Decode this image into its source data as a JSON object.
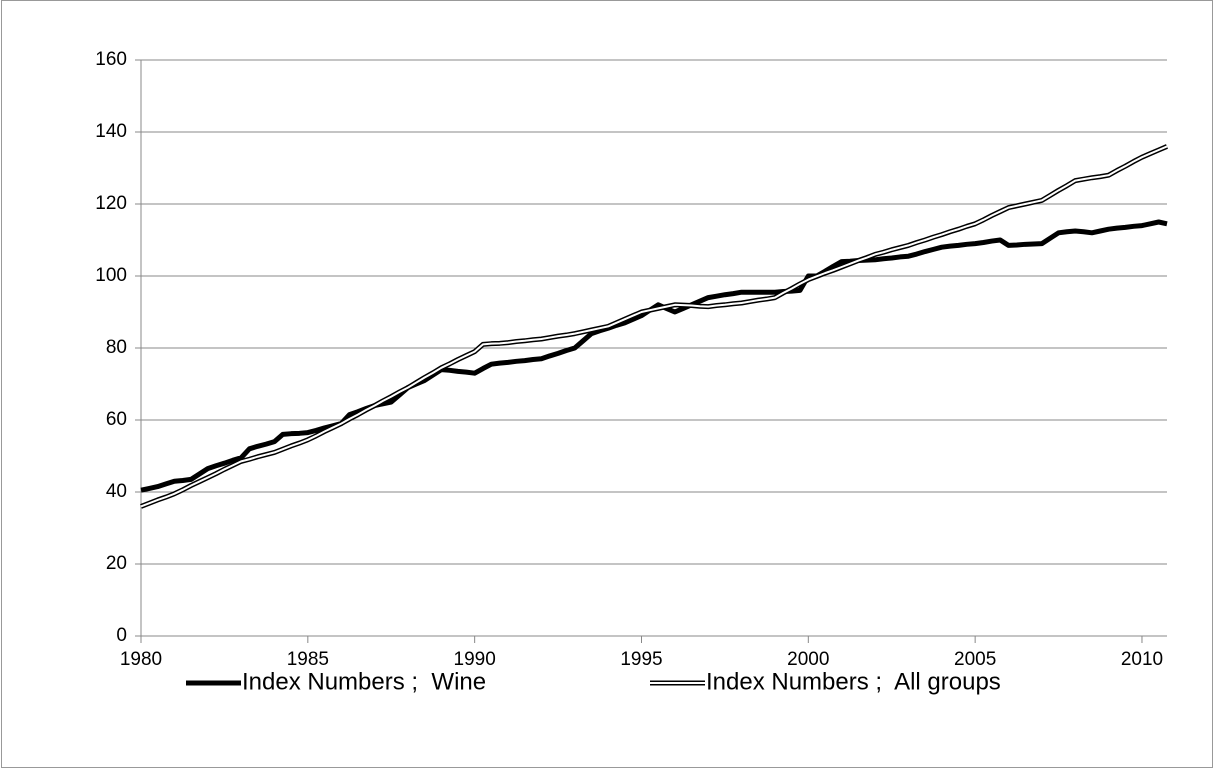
{
  "chart_data": {
    "type": "line",
    "x": [
      1980,
      1980.25,
      1980.5,
      1980.75,
      1981,
      1981.25,
      1981.5,
      1981.75,
      1982,
      1982.25,
      1982.5,
      1982.75,
      1983,
      1983.25,
      1983.5,
      1983.75,
      1984,
      1984.25,
      1984.5,
      1984.75,
      1985,
      1985.25,
      1985.5,
      1985.75,
      1986,
      1986.25,
      1986.5,
      1986.75,
      1987,
      1987.25,
      1987.5,
      1987.75,
      1988,
      1988.25,
      1988.5,
      1988.75,
      1989,
      1989.25,
      1989.5,
      1989.75,
      1990,
      1990.25,
      1990.5,
      1990.75,
      1991,
      1991.25,
      1991.5,
      1991.75,
      1992,
      1992.25,
      1992.5,
      1992.75,
      1993,
      1993.25,
      1993.5,
      1993.75,
      1994,
      1994.25,
      1994.5,
      1994.75,
      1995,
      1995.25,
      1995.5,
      1995.75,
      1996,
      1996.25,
      1996.5,
      1996.75,
      1997,
      1997.25,
      1997.5,
      1997.75,
      1998,
      1998.25,
      1998.5,
      1998.75,
      1999,
      1999.25,
      1999.5,
      1999.75,
      2000,
      2000.25,
      2000.5,
      2000.75,
      2001,
      2001.25,
      2001.5,
      2001.75,
      2002,
      2002.25,
      2002.5,
      2002.75,
      2003,
      2003.25,
      2003.5,
      2003.75,
      2004,
      2004.25,
      2004.5,
      2004.75,
      2005,
      2005.25,
      2005.5,
      2005.75,
      2006,
      2006.25,
      2006.5,
      2006.75,
      2007,
      2007.25,
      2007.5,
      2007.75,
      2008,
      2008.25,
      2008.5,
      2008.75,
      2009,
      2009.25,
      2009.5,
      2009.75,
      2010,
      2010.25,
      2010.5,
      2010.75
    ],
    "series": [
      {
        "name": "Index Numbers ;  Wine",
        "color": "#000000",
        "line_style": "solid",
        "values": [
          40.5,
          41,
          41.5,
          42.25,
          43,
          43.2,
          43.5,
          45,
          46.5,
          47.3,
          48,
          48.8,
          49.5,
          52,
          52.7,
          53.3,
          54,
          56,
          56.2,
          56.3,
          56.5,
          57.1,
          57.8,
          58.4,
          59,
          61.5,
          62.3,
          63.2,
          64,
          64.5,
          65,
          67,
          69,
          70,
          71,
          72.5,
          74,
          73.8,
          73.5,
          73.3,
          73,
          74.3,
          75.5,
          75.8,
          76,
          76.3,
          76.5,
          76.8,
          77,
          77.8,
          78.5,
          79.3,
          80,
          82,
          84,
          84.8,
          85.5,
          86.3,
          87,
          88,
          89,
          90.5,
          92,
          91,
          90,
          91,
          92,
          93,
          94,
          94.4,
          94.8,
          95.1,
          95.5,
          95.5,
          95.5,
          95.5,
          95.5,
          95.7,
          95.8,
          96,
          100,
          100,
          101.3,
          102.7,
          104,
          104.1,
          104.3,
          104.4,
          104.5,
          104.8,
          105,
          105.3,
          105.5,
          106.1,
          106.8,
          107.4,
          108,
          108.3,
          108.5,
          108.8,
          109,
          109.3,
          109.7,
          110,
          108.5,
          108.6,
          108.8,
          108.9,
          109,
          110.5,
          112,
          112.3,
          112.5,
          112.3,
          112,
          112.5,
          113,
          113.3,
          113.5,
          113.8,
          114,
          114.5,
          115,
          114.5
        ]
      },
      {
        "name": "Index Numbers ;  All groups",
        "color": "#000000",
        "line_style": "double",
        "values": [
          36,
          36.9,
          37.8,
          38.6,
          39.5,
          40.6,
          41.8,
          42.9,
          44,
          45.1,
          46.3,
          47.4,
          48.5,
          49.1,
          49.8,
          50.4,
          51,
          51.9,
          52.8,
          53.6,
          54.5,
          55.6,
          56.8,
          57.9,
          59,
          60.3,
          61.5,
          62.8,
          64,
          65.3,
          66.5,
          67.8,
          69,
          70.4,
          71.8,
          73.1,
          74.5,
          75.6,
          76.8,
          77.9,
          79,
          81,
          81.2,
          81.3,
          81.5,
          81.8,
          82,
          82.3,
          82.5,
          82.9,
          83.3,
          83.6,
          84,
          84.5,
          85,
          85.5,
          86,
          87,
          88,
          89,
          90,
          90.5,
          91,
          91.5,
          92,
          91.9,
          91.8,
          91.6,
          91.5,
          91.8,
          92,
          92.3,
          92.5,
          92.9,
          93.3,
          93.6,
          94,
          95.3,
          96.5,
          97.8,
          99,
          99.9,
          100.8,
          101.6,
          102.5,
          103.4,
          104.3,
          105.1,
          106,
          106.6,
          107.3,
          107.9,
          108.5,
          109.3,
          110,
          110.8,
          111.5,
          112.3,
          113,
          113.8,
          114.5,
          115.6,
          116.8,
          117.9,
          119,
          119.5,
          120,
          120.5,
          121,
          122.4,
          123.8,
          125.1,
          126.5,
          126.9,
          127.3,
          127.6,
          128,
          129.3,
          130.5,
          131.8,
          133,
          134,
          135,
          136
        ]
      }
    ],
    "xlim": [
      1980,
      2010.75
    ],
    "xticks": [
      1980,
      1985,
      1990,
      1995,
      2000,
      2005,
      2010
    ],
    "ylim": [
      0,
      160
    ],
    "yticks": [
      0,
      20,
      40,
      60,
      80,
      100,
      120,
      140,
      160
    ],
    "grid": true,
    "legend": "bottom"
  }
}
